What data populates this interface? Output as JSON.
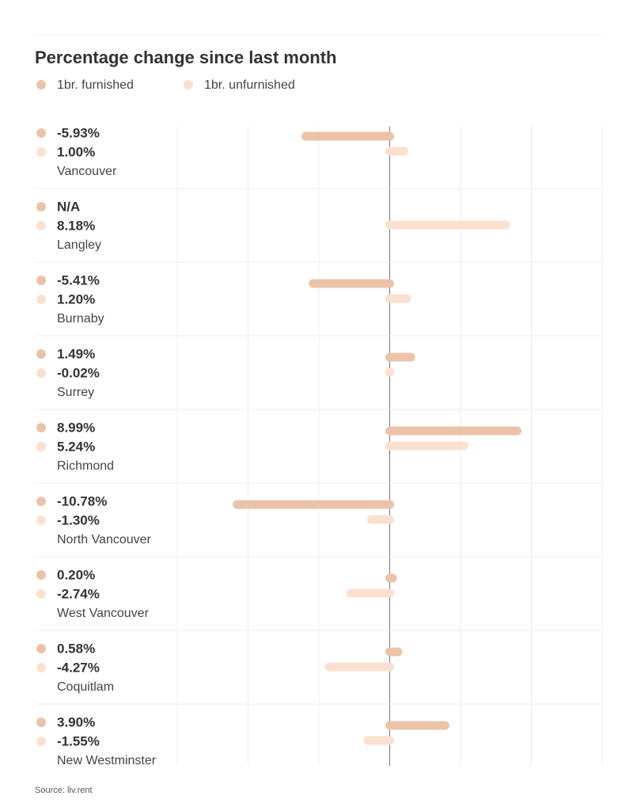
{
  "chart_data": {
    "type": "diverging-bar",
    "title": "Percentage change since last month",
    "categories": [
      "Vancouver",
      "Langley",
      "Burnaby",
      "Surrey",
      "Richmond",
      "North Vancouver",
      "West Vancouver",
      "Coquitlam",
      "New Westminster"
    ],
    "series": [
      {
        "name": "1br. furnished",
        "color": "#ebc3a8",
        "values": [
          -5.93,
          null,
          -5.41,
          1.49,
          8.99,
          -10.78,
          0.2,
          0.58,
          3.9
        ],
        "value_labels": [
          "-5.93%",
          "N/A",
          "-5.41%",
          "1.49%",
          "8.99%",
          "-10.78%",
          "0.20%",
          "0.58%",
          "3.90%"
        ]
      },
      {
        "name": "1br. unfurnished",
        "color": "#fbe0cf",
        "values": [
          1.0,
          8.18,
          1.2,
          -0.02,
          5.24,
          -1.3,
          -2.74,
          -4.27,
          -1.55
        ],
        "value_labels": [
          "1.00%",
          "8.18%",
          "1.20%",
          "-0.02%",
          "5.24%",
          "-1.30%",
          "-2.74%",
          "-4.27%",
          "-1.55%"
        ]
      }
    ],
    "xlim": [
      -15,
      15
    ],
    "xticks": [
      -15,
      -10,
      -5,
      0,
      5,
      10,
      15
    ],
    "grid": true,
    "source": "Source: liv.rent"
  }
}
